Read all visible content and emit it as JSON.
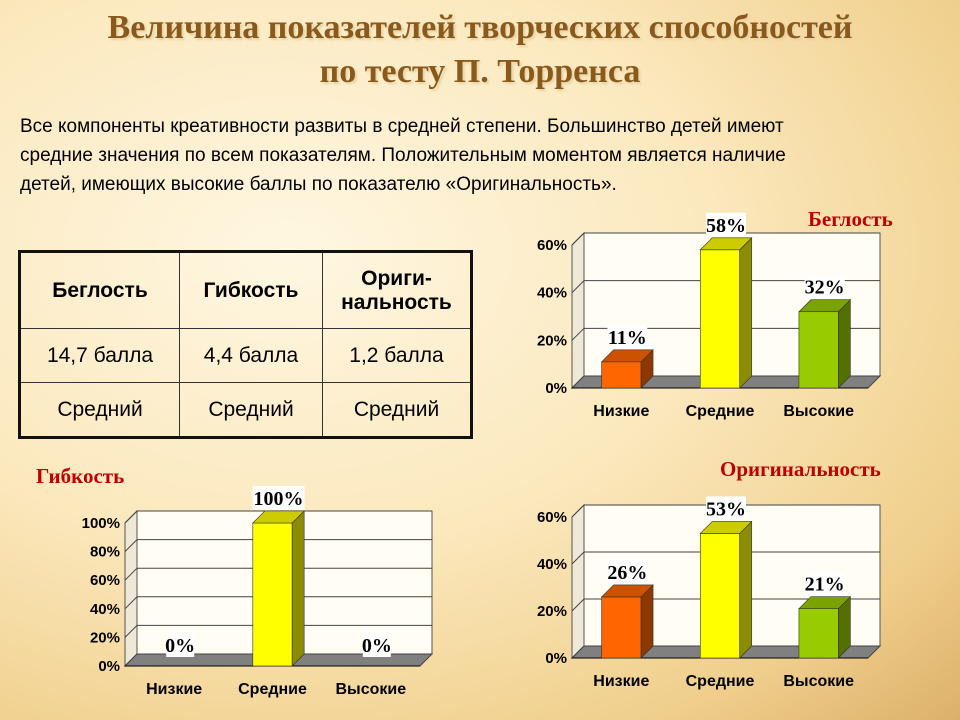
{
  "title": {
    "line1": "Величина показателей творческих способностей",
    "line2": "по тесту П. Торренса"
  },
  "intro": {
    "line1": "Все компоненты креативности развиты в средней степени. Большинство детей имеют",
    "line2": "средние значения по всем показателям. Положительным моментом является наличие",
    "line3": "детей, имеющих высокие баллы по показателю «Оригинальность»."
  },
  "table": {
    "headers": [
      "Беглость",
      "Гибкость",
      "Ориги-нальность"
    ],
    "rows": [
      [
        "14,7 балла",
        "4,4 балла",
        "1,2 балла"
      ],
      [
        "Средний",
        "Средний",
        "Средний"
      ]
    ]
  },
  "colors": {
    "low": "#ff6600",
    "mid": "#ffff00",
    "high": "#99cc00",
    "title": "#c00000"
  },
  "chart_data": [
    {
      "type": "bar",
      "title": "Беглость",
      "categories": [
        "Низкие",
        "Средние",
        "Высокие"
      ],
      "values": [
        11,
        58,
        32
      ],
      "data_labels": [
        "11%",
        "58%",
        "32%"
      ],
      "yticks": [
        "0%",
        "20%",
        "40%",
        "60%"
      ],
      "ylim": [
        0,
        60
      ]
    },
    {
      "type": "bar",
      "title": "Гибкость",
      "categories": [
        "Низкие",
        "Средние",
        "Высокие"
      ],
      "values": [
        0,
        100,
        0
      ],
      "data_labels": [
        "0%",
        "100%",
        "0%"
      ],
      "yticks": [
        "0%",
        "20%",
        "40%",
        "60%",
        "80%",
        "100%"
      ],
      "ylim": [
        0,
        100
      ]
    },
    {
      "type": "bar",
      "title": "Оригинальность",
      "categories": [
        "Низкие",
        "Средние",
        "Высокие"
      ],
      "values": [
        26,
        53,
        21
      ],
      "data_labels": [
        "26%",
        "53%",
        "21%"
      ],
      "yticks": [
        "0%",
        "20%",
        "40%",
        "60%"
      ],
      "ylim": [
        0,
        60
      ]
    }
  ]
}
